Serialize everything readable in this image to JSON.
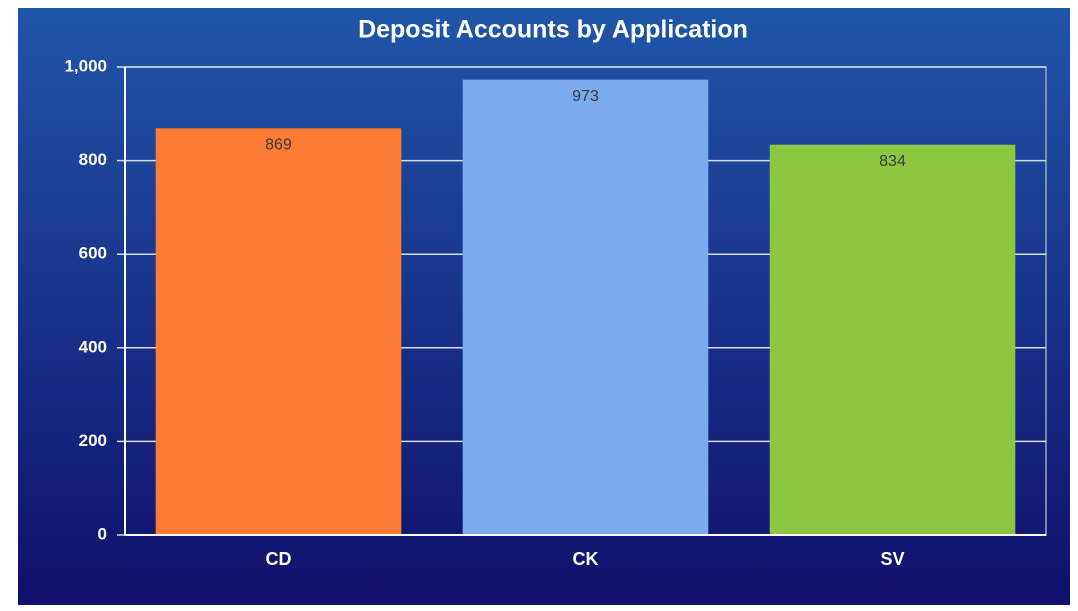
{
  "chart_data": {
    "type": "bar",
    "title": "Deposit Accounts by Application",
    "categories": [
      "CD",
      "CK",
      "SV"
    ],
    "values": [
      869,
      973,
      834
    ],
    "colors": [
      "#fd7c35",
      "#7aabee",
      "#8dc641"
    ],
    "ylim": [
      0,
      1000
    ],
    "yticks": [
      0,
      200,
      400,
      600,
      800,
      {
        "value": 1000,
        "label": "1,000"
      }
    ],
    "grid": true
  }
}
